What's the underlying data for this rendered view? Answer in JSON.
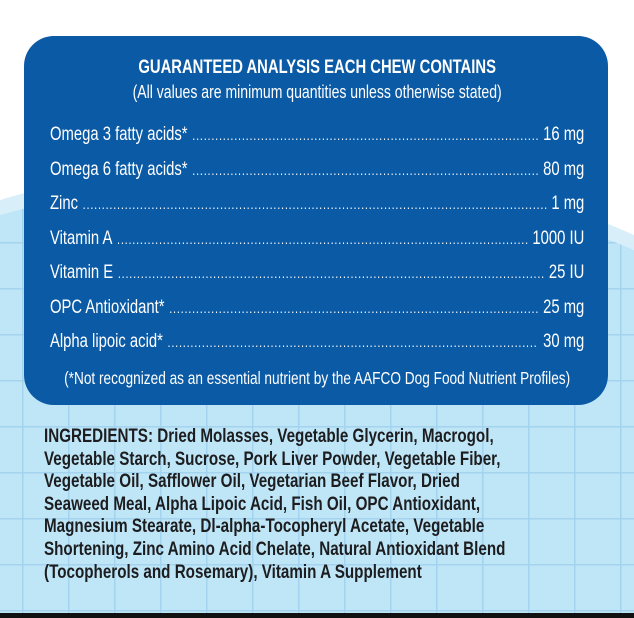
{
  "analysis": {
    "title": "GUARANTEED ANALYSIS EACH CHEW CONTAINS",
    "subtitle": "(All values are minimum quantities unless otherwise stated)",
    "rows": [
      {
        "name": "Omega 3 fatty acids*",
        "value": "16 mg"
      },
      {
        "name": "Omega 6 fatty acids*",
        "value": "80 mg"
      },
      {
        "name": "Zinc",
        "value": "1 mg"
      },
      {
        "name": "Vitamin A",
        "value": "1000 IU"
      },
      {
        "name": "Vitamin E",
        "value": "25 IU"
      },
      {
        "name": "OPC Antioxidant*",
        "value": "25 mg"
      },
      {
        "name": "Alpha lipoic acid*",
        "value": "30 mg"
      }
    ],
    "footnote": "(*Not recognized as an essential nutrient by the AAFCO Dog Food Nutrient Profiles)"
  },
  "ingredients": {
    "lines": [
      "INGREDIENTS: Dried Molasses, Vegetable Glycerin, Macrogol,",
      "Vegetable Starch, Sucrose, Pork Liver Powder, Vegetable Fiber,",
      "Vegetable Oil, Safflower Oil, Vegetarian Beef Flavor, Dried",
      "Seaweed Meal, Alpha Lipoic Acid, Fish Oil, OPC Antioxidant,",
      "Magnesium Stearate, Dl-alpha-Tocopheryl Acetate, Vegetable",
      "Shortening, Zinc Amino Acid Chelate, Natural Antioxidant Blend",
      "(Tocopherols and Rosemary), Vitamin A Supplement"
    ]
  },
  "colors": {
    "panel": "#0b5aa5",
    "background": "#bfe6f7",
    "grid": "#a3d3ee",
    "text": "#1d1d1f"
  }
}
